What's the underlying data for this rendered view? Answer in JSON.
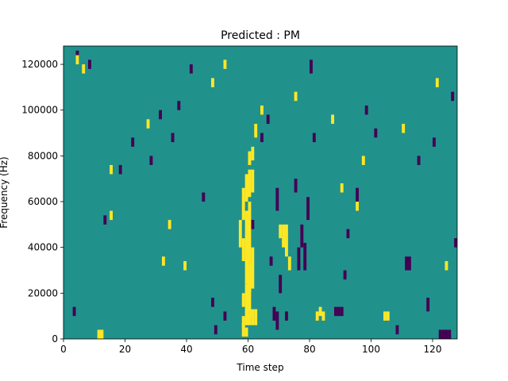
{
  "chart_data": {
    "type": "heatmap",
    "title": "Predicted : PM",
    "xlabel": "Time step",
    "ylabel": "Frequency (Hz)",
    "xlim": [
      0,
      128
    ],
    "ylim": [
      0,
      128000
    ],
    "xticks": [
      0,
      20,
      40,
      60,
      80,
      100,
      120
    ],
    "yticks": [
      0,
      20000,
      40000,
      60000,
      80000,
      100000,
      120000
    ],
    "grid": false,
    "colormap": "viridis",
    "value_levels": [
      0,
      1,
      2
    ],
    "colors": {
      "low": "#440154",
      "mid": "#21918c",
      "high": "#fde725"
    },
    "background_level": 1,
    "n_time_steps": 128,
    "n_freq_bins": 128,
    "bin_height_hz": 1000,
    "high_cells": [
      [
        58,
        1,
        7
      ],
      [
        59,
        1,
        5
      ],
      [
        58,
        5,
        10
      ],
      [
        59,
        6,
        13
      ],
      [
        60,
        6,
        13
      ],
      [
        61,
        6,
        13
      ],
      [
        62,
        6,
        13
      ],
      [
        58,
        14,
        20
      ],
      [
        59,
        13,
        24
      ],
      [
        60,
        10,
        32
      ],
      [
        58,
        34,
        44
      ],
      [
        59,
        24,
        56
      ],
      [
        60,
        20,
        60
      ],
      [
        61,
        22,
        40
      ],
      [
        57,
        40,
        52
      ],
      [
        58,
        52,
        66
      ],
      [
        59,
        60,
        72
      ],
      [
        60,
        62,
        74
      ],
      [
        61,
        64,
        74
      ],
      [
        60,
        76,
        82
      ],
      [
        61,
        78,
        84
      ],
      [
        62,
        88,
        94
      ],
      [
        70,
        44,
        50
      ],
      [
        71,
        40,
        50
      ],
      [
        72,
        36,
        50
      ],
      [
        73,
        30,
        36
      ],
      [
        82,
        8,
        12
      ],
      [
        83,
        10,
        14
      ],
      [
        84,
        8,
        12
      ],
      [
        104,
        8,
        12
      ],
      [
        105,
        8,
        12
      ],
      [
        11,
        0,
        4
      ],
      [
        12,
        0,
        4
      ],
      [
        4,
        120,
        124
      ],
      [
        6,
        116,
        120
      ],
      [
        15,
        72,
        76
      ],
      [
        15,
        52,
        56
      ],
      [
        27,
        92,
        96
      ],
      [
        32,
        32,
        36
      ],
      [
        34,
        48,
        52
      ],
      [
        39,
        30,
        34
      ],
      [
        48,
        110,
        114
      ],
      [
        52,
        118,
        122
      ],
      [
        64,
        98,
        102
      ],
      [
        75,
        104,
        108
      ],
      [
        87,
        94,
        98
      ],
      [
        90,
        64,
        68
      ],
      [
        95,
        56,
        60
      ],
      [
        97,
        76,
        80
      ],
      [
        110,
        90,
        94
      ],
      [
        121,
        110,
        114
      ],
      [
        124,
        30,
        34
      ]
    ],
    "low_cells": [
      [
        3,
        10,
        14
      ],
      [
        4,
        122,
        126
      ],
      [
        8,
        118,
        122
      ],
      [
        13,
        50,
        54
      ],
      [
        18,
        72,
        76
      ],
      [
        22,
        84,
        88
      ],
      [
        28,
        76,
        80
      ],
      [
        31,
        96,
        100
      ],
      [
        35,
        86,
        90
      ],
      [
        37,
        100,
        104
      ],
      [
        41,
        116,
        120
      ],
      [
        45,
        60,
        64
      ],
      [
        48,
        14,
        18
      ],
      [
        49,
        2,
        6
      ],
      [
        52,
        8,
        12
      ],
      [
        61,
        48,
        52
      ],
      [
        64,
        86,
        90
      ],
      [
        66,
        94,
        98
      ],
      [
        67,
        32,
        36
      ],
      [
        68,
        8,
        14
      ],
      [
        69,
        4,
        12
      ],
      [
        69,
        56,
        66
      ],
      [
        70,
        20,
        28
      ],
      [
        72,
        8,
        12
      ],
      [
        75,
        64,
        70
      ],
      [
        76,
        30,
        40
      ],
      [
        77,
        40,
        50
      ],
      [
        78,
        30,
        42
      ],
      [
        79,
        52,
        62
      ],
      [
        80,
        116,
        122
      ],
      [
        81,
        86,
        90
      ],
      [
        88,
        10,
        14
      ],
      [
        89,
        10,
        14
      ],
      [
        90,
        10,
        14
      ],
      [
        91,
        26,
        30
      ],
      [
        92,
        44,
        48
      ],
      [
        95,
        60,
        66
      ],
      [
        98,
        98,
        102
      ],
      [
        101,
        88,
        92
      ],
      [
        108,
        2,
        6
      ],
      [
        111,
        30,
        36
      ],
      [
        112,
        30,
        36
      ],
      [
        115,
        76,
        80
      ],
      [
        118,
        12,
        18
      ],
      [
        120,
        84,
        88
      ],
      [
        122,
        0,
        4
      ],
      [
        123,
        0,
        4
      ],
      [
        124,
        0,
        4
      ],
      [
        125,
        0,
        4
      ],
      [
        126,
        104,
        108
      ],
      [
        127,
        40,
        44
      ]
    ]
  }
}
